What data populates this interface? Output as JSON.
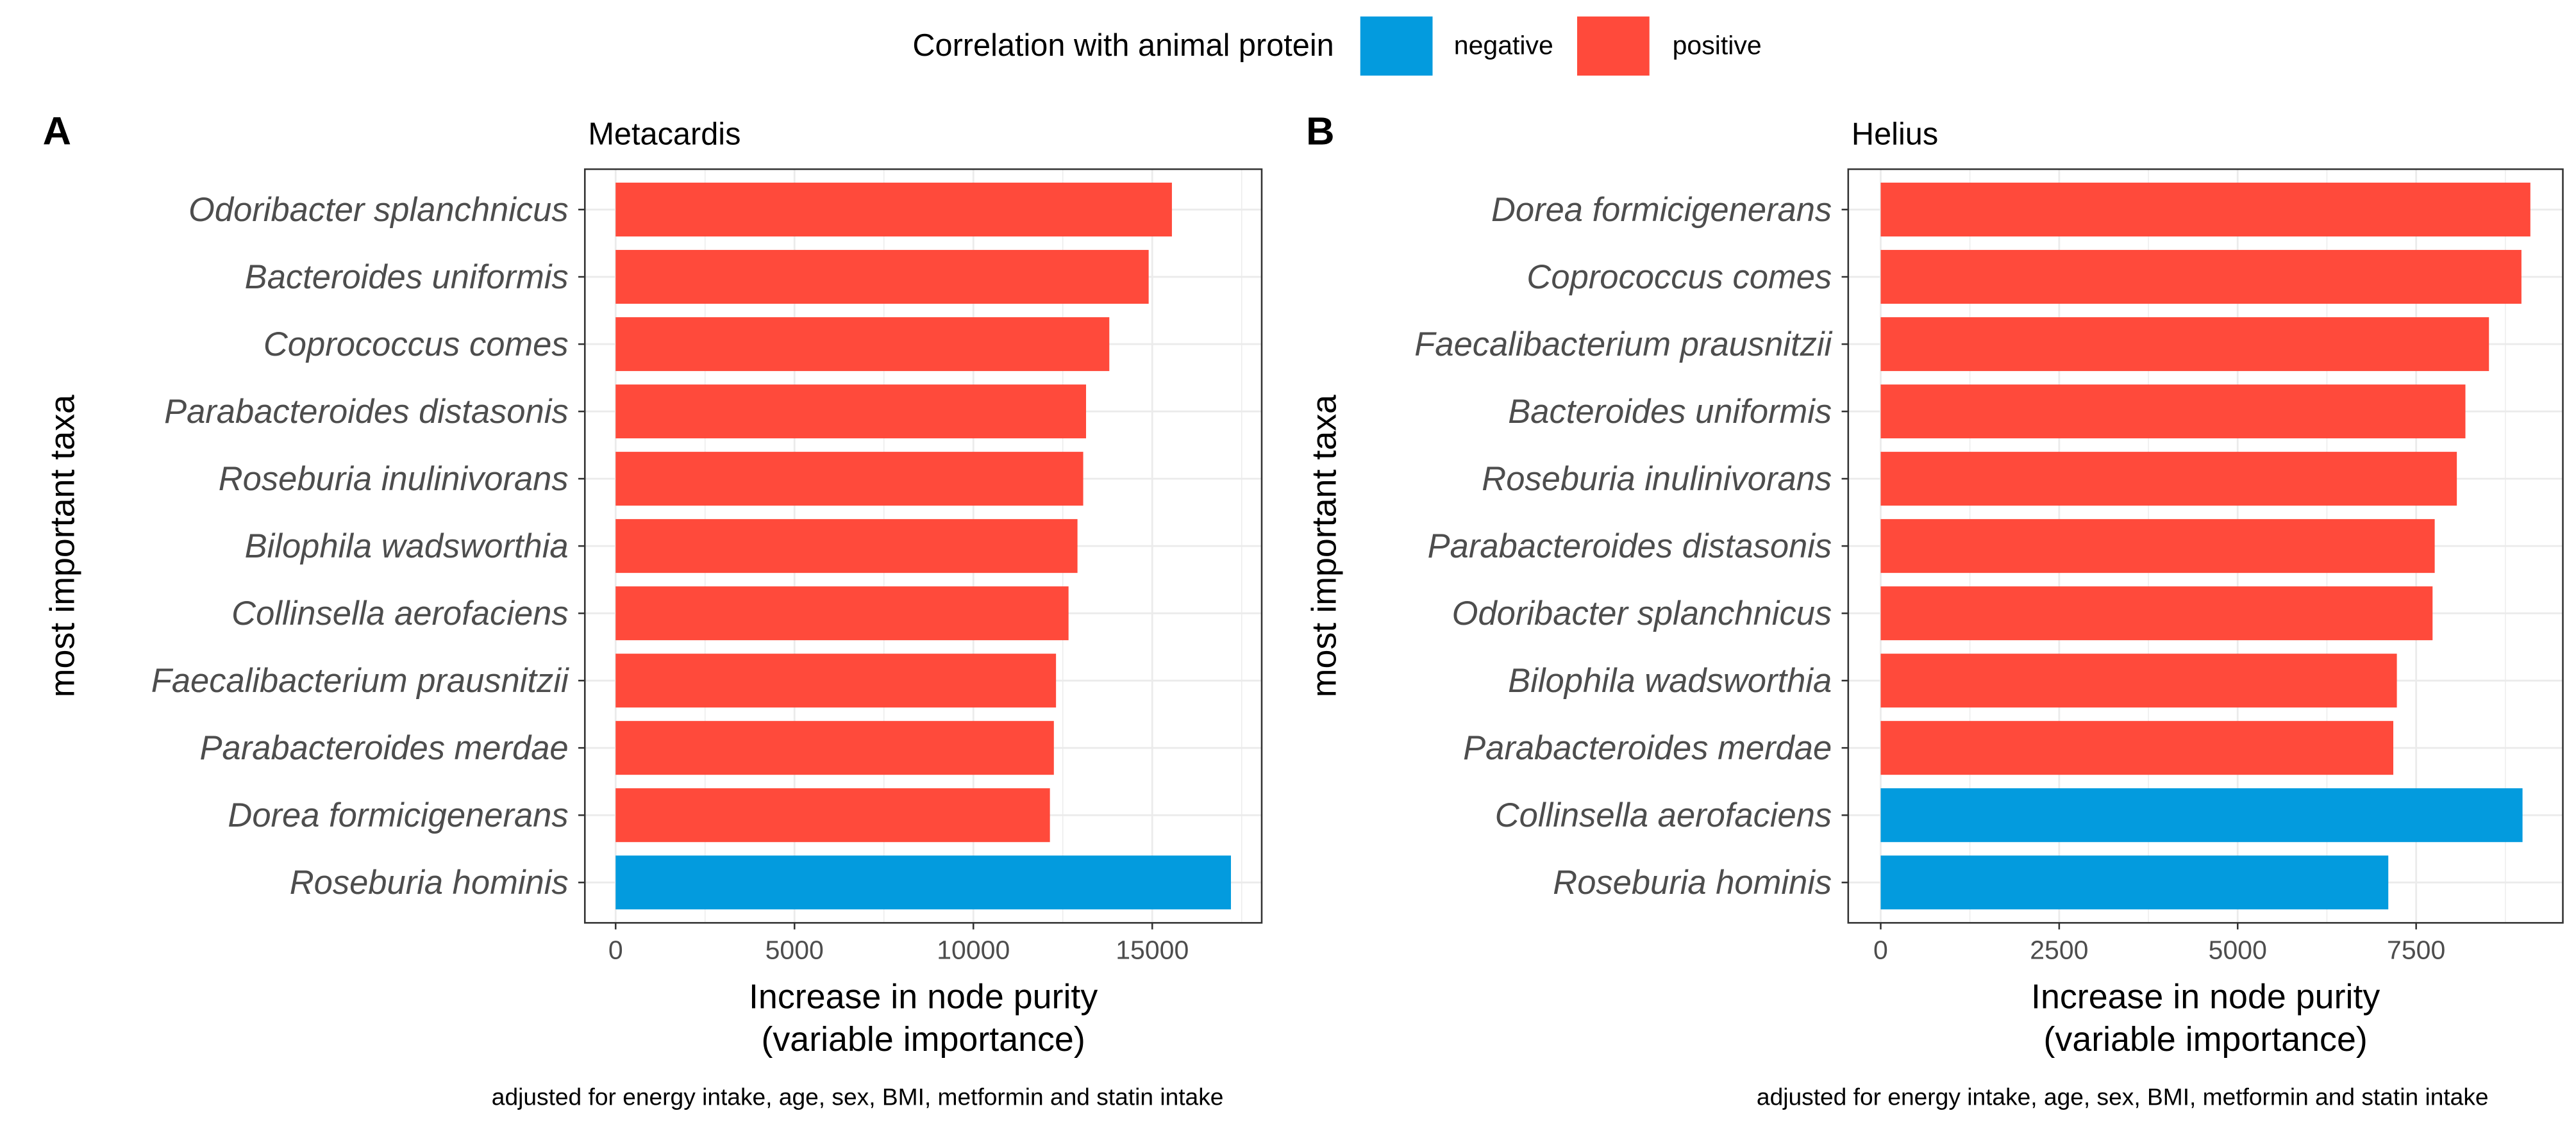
{
  "legend": {
    "title": "Correlation with animal protein",
    "entries": [
      {
        "label": "negative",
        "color": "#039BDE"
      },
      {
        "label": "positive",
        "color": "#FF4A3B"
      }
    ]
  },
  "footnote": "adjusted for energy intake, age, sex, BMI, metformin and statin intake",
  "chart_data": [
    {
      "type": "bar",
      "orientation": "horizontal",
      "panel_label": "A",
      "title": "Metacardis",
      "xlabel": [
        "Increase in node purity",
        "(variable importance)"
      ],
      "ylabel": "most important taxa",
      "xlim": [
        -860,
        18060
      ],
      "xticks": [
        0,
        5000,
        10000,
        15000
      ],
      "grid": true,
      "categories": [
        "Odoribacter splanchnicus",
        "Bacteroides uniformis",
        "Coprococcus comes",
        "Parabacteroides distasonis",
        "Roseburia inulinivorans",
        "Bilophila wadsworthia",
        "Collinsella aerofaciens",
        "Faecalibacterium prausnitzii",
        "Parabacteroides merdae",
        "Dorea formicigenerans",
        "Roseburia hominis"
      ],
      "values": [
        15550,
        14900,
        13800,
        13150,
        13070,
        12910,
        12660,
        12310,
        12250,
        12140,
        17200
      ],
      "correlation": [
        "positive",
        "positive",
        "positive",
        "positive",
        "positive",
        "positive",
        "positive",
        "positive",
        "positive",
        "positive",
        "negative"
      ]
    },
    {
      "type": "bar",
      "orientation": "horizontal",
      "panel_label": "B",
      "title": "Helius",
      "xlabel": [
        "Increase in node purity",
        "(variable importance)"
      ],
      "ylabel": "most important taxa",
      "xlim": [
        -455,
        9555
      ],
      "xticks": [
        0,
        2500,
        5000,
        7500
      ],
      "grid": true,
      "categories": [
        "Dorea formicigenerans",
        "Coprococcus comes",
        "Faecalibacterium prausnitzii",
        "Bacteroides uniformis",
        "Roseburia inulinivorans",
        "Parabacteroides distasonis",
        "Odoribacter splanchnicus",
        "Bilophila wadsworthia",
        "Parabacteroides merdae",
        "Collinsella aerofaciens",
        "Roseburia hominis"
      ],
      "values": [
        9100,
        8975,
        8520,
        8190,
        8070,
        7760,
        7730,
        7230,
        7180,
        8990,
        7110
      ],
      "correlation": [
        "positive",
        "positive",
        "positive",
        "positive",
        "positive",
        "positive",
        "positive",
        "positive",
        "positive",
        "negative",
        "negative"
      ]
    }
  ]
}
